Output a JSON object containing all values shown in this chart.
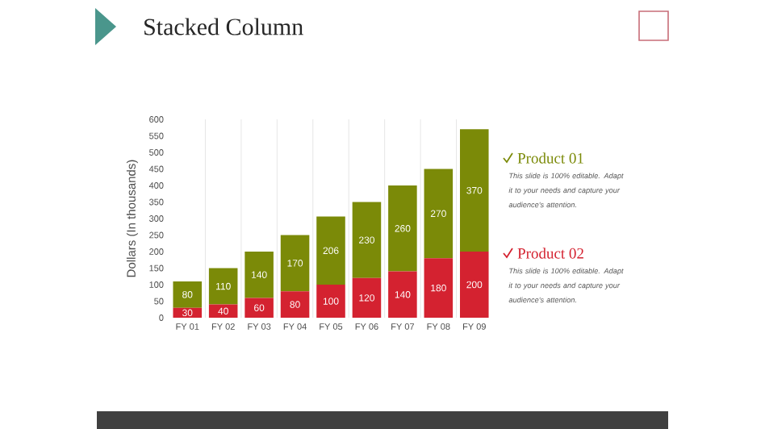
{
  "chart_data": {
    "type": "bar",
    "title": "Stacked Column",
    "ylabel": "Dollars (In thousands)",
    "categories": [
      "FY 01",
      "FY 02",
      "FY 03",
      "FY 04",
      "FY 05",
      "FY 06",
      "FY 07",
      "FY 08",
      "FY 09"
    ],
    "series": [
      {
        "name": "Product 02",
        "color": "#d42230",
        "values": [
          30,
          40,
          60,
          80,
          100,
          120,
          140,
          180,
          200
        ]
      },
      {
        "name": "Product 01",
        "color": "#7b8a08",
        "values": [
          80,
          110,
          140,
          170,
          206,
          230,
          260,
          270,
          370
        ]
      }
    ],
    "stacked": true,
    "ylim": [
      0,
      600
    ],
    "yticks": [
      0,
      50,
      100,
      150,
      200,
      250,
      300,
      350,
      400,
      450,
      500,
      550,
      600
    ],
    "grid": "x",
    "legend": "right",
    "data_labels": true,
    "annotations": [
      "This slide is 100% editable. Adapt it to your needs and capture your audience's attention.",
      "This slide is 100% editable. Adapt it to your needs and capture your audience's attention."
    ]
  }
}
